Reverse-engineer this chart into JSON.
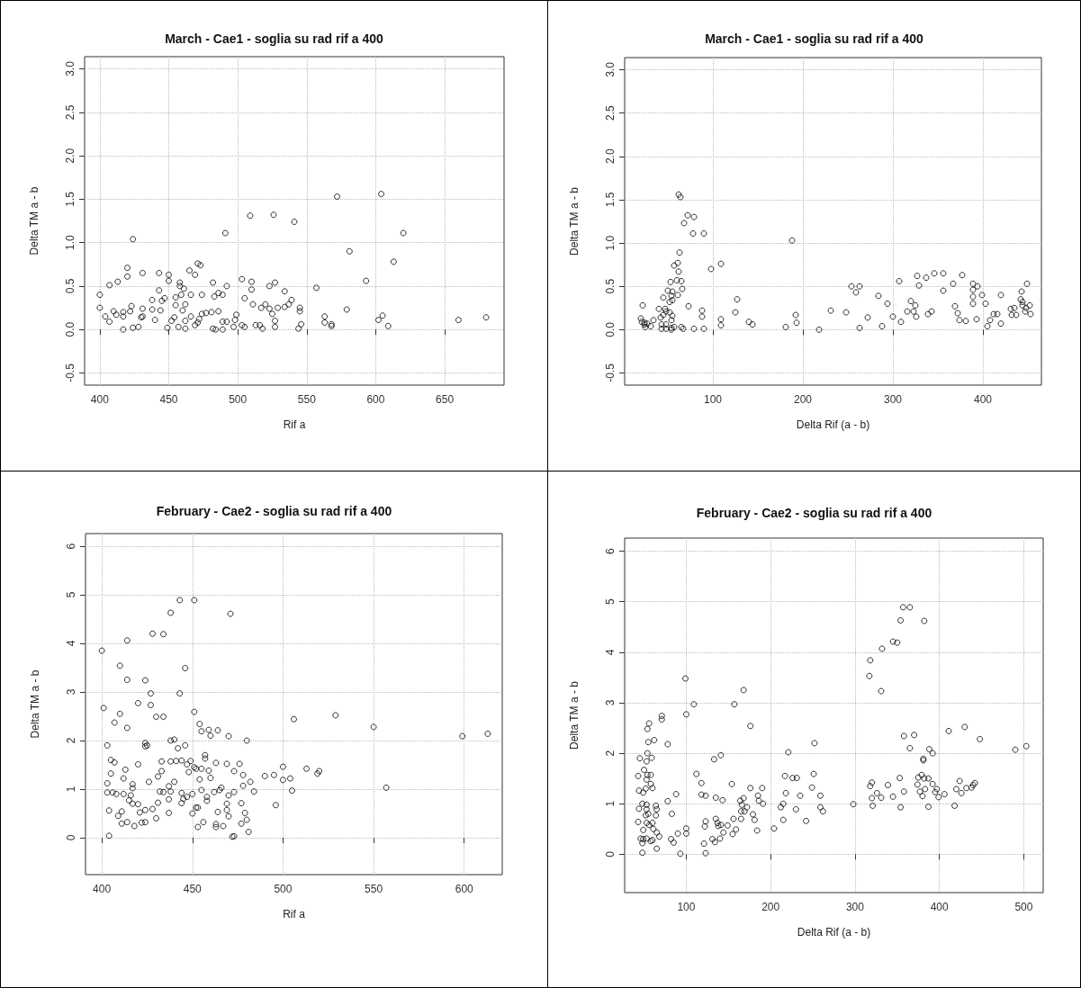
{
  "chart_data": [
    {
      "type": "scatter",
      "title": "March - Cae1 - soglia su rad rif a 400",
      "xlabel": "Rif a",
      "ylabel": "Delta TM a - b",
      "color": "#000000",
      "marker": "circle",
      "grid": true,
      "xlim": [
        389,
        693
      ],
      "xticks": [
        400,
        450,
        500,
        550,
        600,
        650
      ],
      "ylim": [
        -0.64,
        3.14
      ],
      "yticks": [
        -0.5,
        {
          "value": 0,
          "label": "0.0"
        },
        0.5,
        {
          "value": 1,
          "label": "1.0"
        },
        1.5,
        {
          "value": 2,
          "label": "2.0"
        },
        2.5,
        {
          "value": 3,
          "label": "3.0"
        }
      ],
      "x": [
        509,
        526,
        541,
        491,
        424,
        572,
        604,
        620,
        581,
        613,
        593,
        557,
        400,
        407,
        413,
        420,
        420,
        431,
        443,
        450,
        450,
        465,
        469,
        471,
        473,
        443,
        458,
        458,
        461,
        459,
        455,
        466,
        474,
        482,
        483,
        486,
        489,
        492,
        503,
        510,
        510,
        523,
        527,
        534,
        505,
        511,
        517,
        520,
        523,
        525,
        529,
        534,
        537,
        539,
        545,
        545,
        546,
        544,
        527,
        527,
        518,
        516,
        513,
        505,
        503,
        499,
        498,
        497,
        492,
        489,
        489,
        484,
        482,
        486,
        481,
        477,
        474,
        472,
        471,
        469,
        466,
        462,
        462,
        457,
        454,
        452,
        449,
        460,
        455,
        462,
        445,
        447,
        444,
        438,
        438,
        440,
        431,
        431,
        430,
        423,
        422,
        417,
        417,
        412,
        410,
        400,
        404,
        407,
        417,
        424,
        428,
        563,
        563,
        568,
        568,
        579,
        602,
        605,
        609,
        660,
        680
      ],
      "values": [
        1.31,
        1.32,
        1.24,
        1.11,
        1.04,
        1.53,
        1.56,
        1.11,
        0.9,
        0.78,
        0.56,
        0.48,
        0.4,
        0.51,
        0.55,
        0.61,
        0.71,
        0.65,
        0.65,
        0.63,
        0.56,
        0.68,
        0.63,
        0.76,
        0.74,
        0.45,
        0.54,
        0.5,
        0.47,
        0.4,
        0.37,
        0.4,
        0.4,
        0.54,
        0.38,
        0.42,
        0.4,
        0.5,
        0.58,
        0.55,
        0.46,
        0.5,
        0.54,
        0.44,
        0.36,
        0.29,
        0.25,
        0.29,
        0.24,
        0.18,
        0.25,
        0.26,
        0.29,
        0.34,
        0.25,
        0.21,
        0.06,
        0.01,
        0.1,
        0.03,
        0.01,
        0.05,
        0.05,
        0.03,
        0.05,
        0.17,
        0.11,
        0.03,
        0.09,
        0.09,
        0.0,
        0.0,
        0.01,
        0.21,
        0.2,
        0.19,
        0.18,
        0.12,
        0.08,
        0.05,
        0.15,
        0.1,
        0.01,
        0.03,
        0.14,
        0.1,
        0.02,
        0.22,
        0.28,
        0.29,
        0.33,
        0.36,
        0.22,
        0.34,
        0.23,
        0.11,
        0.24,
        0.15,
        0.14,
        0.27,
        0.21,
        0.2,
        0.15,
        0.17,
        0.21,
        0.25,
        0.15,
        0.09,
        0.0,
        0.02,
        0.03,
        0.15,
        0.08,
        0.06,
        0.04,
        0.23,
        0.11,
        0.16,
        0.04,
        0.11,
        0.14
      ]
    },
    {
      "type": "scatter",
      "title": "March - Cae1 - soglia su rad rif a 400",
      "xlabel": "Delta Rif (a - b)",
      "ylabel": "Delta TM a - b",
      "color": "#000000",
      "marker": "circle",
      "grid": true,
      "xlim": [
        2,
        465
      ],
      "xticks": [
        100,
        200,
        300,
        400
      ],
      "ylim": [
        -0.64,
        3.14
      ],
      "yticks": [
        -0.5,
        {
          "value": 0,
          "label": "0.0"
        },
        0.5,
        {
          "value": 1,
          "label": "1.0"
        },
        1.5,
        {
          "value": 2,
          "label": "2.0"
        },
        2.5,
        {
          "value": 3,
          "label": "3.0"
        }
      ],
      "x": [
        62,
        64,
        68,
        72,
        79,
        78,
        90,
        63,
        61,
        62,
        57,
        60,
        65,
        53,
        66,
        61,
        54,
        55,
        50,
        45,
        52,
        55,
        40,
        47,
        48,
        45,
        42,
        52,
        55,
        54,
        48,
        43,
        43,
        48,
        54,
        54,
        57,
        65,
        67,
        79,
        90,
        73,
        88,
        88,
        98,
        109,
        109,
        109,
        125,
        127,
        140,
        144,
        181,
        188,
        192,
        193,
        218,
        231,
        248,
        254,
        263,
        259,
        263,
        272,
        284,
        288,
        294,
        300,
        307,
        309,
        316,
        320,
        323,
        325,
        326,
        327,
        329,
        337,
        339,
        343,
        346,
        356,
        356,
        367,
        369,
        372,
        374,
        377,
        381,
        389,
        389,
        389,
        394,
        389,
        393,
        399,
        403,
        405,
        408,
        412,
        416,
        420,
        420,
        431,
        435,
        432,
        437,
        443,
        442,
        444,
        444,
        448,
        449,
        447,
        452,
        453,
        20,
        22,
        21,
        24,
        25,
        27,
        31,
        24,
        34
      ],
      "values": [
        1.56,
        1.53,
        1.23,
        1.32,
        1.3,
        1.11,
        1.11,
        0.89,
        0.77,
        0.67,
        0.74,
        0.57,
        0.56,
        0.55,
        0.47,
        0.4,
        0.39,
        0.44,
        0.45,
        0.37,
        0.32,
        0.34,
        0.24,
        0.24,
        0.21,
        0.17,
        0.14,
        0.2,
        0.16,
        0.11,
        0.06,
        0.06,
        0.01,
        0.01,
        0.02,
        0.0,
        0.03,
        0.03,
        0.01,
        0.01,
        0.01,
        0.27,
        0.22,
        0.15,
        0.7,
        0.76,
        0.12,
        0.05,
        0.2,
        0.35,
        0.09,
        0.06,
        0.03,
        1.03,
        0.17,
        0.08,
        0.0,
        0.22,
        0.2,
        0.5,
        0.5,
        0.43,
        0.02,
        0.14,
        0.39,
        0.04,
        0.3,
        0.15,
        0.56,
        0.09,
        0.21,
        0.33,
        0.21,
        0.28,
        0.15,
        0.62,
        0.51,
        0.6,
        0.18,
        0.21,
        0.65,
        0.65,
        0.45,
        0.53,
        0.27,
        0.19,
        0.11,
        0.63,
        0.1,
        0.38,
        0.53,
        0.46,
        0.5,
        0.3,
        0.12,
        0.4,
        0.3,
        0.04,
        0.11,
        0.18,
        0.18,
        0.4,
        0.07,
        0.24,
        0.25,
        0.17,
        0.17,
        0.44,
        0.35,
        0.32,
        0.28,
        0.25,
        0.53,
        0.21,
        0.28,
        0.18,
        0.13,
        0.28,
        0.09,
        0.08,
        0.03,
        0.07,
        0.04,
        0.06,
        0.11
      ]
    },
    {
      "type": "scatter",
      "title": "February - Cae2 - soglia su rad rif a 400",
      "xlabel": "Rif a",
      "ylabel": "Delta TM a - b",
      "color": "#000000",
      "marker": "circle",
      "grid": true,
      "xlim": [
        391,
        621
      ],
      "xticks": [
        400,
        450,
        500,
        550,
        600
      ],
      "ylim": [
        -0.76,
        6.26
      ],
      "yticks": [
        0,
        1,
        2,
        3,
        4,
        5,
        6
      ],
      "x": [
        443,
        451,
        438,
        471,
        428,
        434,
        414,
        400,
        410,
        414,
        424,
        446,
        427,
        443,
        401,
        420,
        427,
        410,
        430,
        434,
        407,
        414,
        451,
        454,
        455,
        459,
        460,
        464,
        470,
        480,
        506,
        529,
        550,
        599,
        613,
        403,
        424,
        425,
        424,
        438,
        440,
        442,
        446,
        405,
        407,
        405,
        413,
        420,
        433,
        438,
        441,
        444,
        447,
        449,
        451,
        448,
        452,
        455,
        459,
        457,
        457,
        463,
        469,
        476,
        473,
        478,
        490,
        495,
        500,
        513,
        520,
        519,
        500,
        504,
        505,
        496,
        557,
        403,
        403,
        406,
        408,
        412,
        412,
        417,
        417,
        416,
        415,
        417,
        420,
        421,
        411,
        404,
        409,
        411,
        414,
        418,
        422,
        424,
        424,
        428,
        430,
        431,
        432,
        434,
        426,
        431,
        433,
        437,
        438,
        437,
        440,
        437,
        444,
        445,
        447,
        444,
        450,
        450,
        452,
        453,
        453,
        456,
        455,
        454,
        458,
        458,
        460,
        462,
        463,
        464,
        463,
        465,
        466,
        467,
        469,
        470,
        470,
        469,
        473,
        473,
        472,
        477,
        477,
        479,
        480,
        481,
        478,
        482,
        484,
        404
      ],
      "values": [
        4.89,
        4.89,
        4.63,
        4.61,
        4.2,
        4.19,
        4.06,
        3.85,
        3.54,
        3.25,
        3.24,
        3.49,
        2.97,
        2.97,
        2.67,
        2.77,
        2.73,
        2.55,
        2.49,
        2.49,
        2.37,
        2.26,
        2.59,
        2.34,
        2.19,
        2.22,
        2.1,
        2.21,
        2.09,
        2.0,
        2.44,
        2.52,
        2.28,
        2.09,
        2.14,
        1.9,
        1.95,
        1.9,
        1.88,
        2.0,
        2.02,
        1.84,
        1.9,
        1.6,
        1.55,
        1.32,
        1.4,
        1.51,
        1.57,
        1.57,
        1.58,
        1.59,
        1.51,
        1.58,
        1.45,
        1.35,
        1.42,
        1.42,
        1.38,
        1.7,
        1.63,
        1.54,
        1.52,
        1.52,
        1.37,
        1.29,
        1.27,
        1.29,
        1.46,
        1.42,
        1.37,
        1.32,
        1.19,
        1.22,
        0.97,
        0.67,
        1.03,
        1.12,
        0.93,
        0.93,
        0.9,
        0.9,
        1.22,
        1.1,
        1.02,
        0.87,
        0.77,
        0.7,
        0.69,
        0.52,
        0.54,
        0.56,
        0.45,
        0.29,
        0.32,
        0.24,
        0.31,
        0.32,
        0.57,
        0.59,
        0.4,
        0.72,
        0.95,
        0.94,
        1.15,
        1.26,
        1.37,
        0.79,
        0.95,
        0.51,
        1.15,
        1.06,
        0.92,
        0.8,
        0.84,
        0.71,
        0.9,
        0.5,
        0.62,
        0.62,
        0.22,
        0.32,
        0.98,
        1.2,
        0.84,
        0.76,
        1.23,
        0.94,
        0.28,
        0.53,
        0.22,
        0.98,
        1.03,
        0.24,
        0.7,
        0.87,
        0.44,
        0.57,
        0.94,
        0.03,
        0.02,
        0.71,
        0.29,
        0.51,
        0.37,
        0.12,
        1.07,
        1.15,
        0.95,
        0.04
      ]
    },
    {
      "type": "scatter",
      "title": "February - Cae2 - soglia su rad rif a 400",
      "xlabel": "Delta Rif (a - b)",
      "ylabel": "Delta TM a - b",
      "color": "#000000",
      "marker": "circle",
      "grid": true,
      "xlim": [
        27,
        523
      ],
      "xticks": [
        100,
        200,
        300,
        400,
        500
      ],
      "ylim": [
        -0.76,
        6.26
      ],
      "yticks": [
        0,
        1,
        2,
        3,
        4,
        5,
        6
      ],
      "x": [
        357,
        365,
        354,
        382,
        345,
        350,
        332,
        318,
        317,
        331,
        99,
        168,
        109,
        157,
        100,
        176,
        71,
        71,
        56,
        54,
        62,
        55,
        78,
        54,
        45,
        59,
        53,
        252,
        221,
        358,
        370,
        365,
        411,
        430,
        448,
        490,
        503,
        388,
        392,
        381,
        381,
        133,
        141,
        112,
        118,
        118,
        123,
        135,
        143,
        154,
        217,
        226,
        231,
        251,
        249,
        218,
        235,
        259,
        215,
        212,
        230,
        259,
        262,
        242,
        215,
        204,
        176,
        190,
        185,
        186,
        191,
        164,
        168,
        166,
        172,
        169,
        165,
        179,
        181,
        165,
        184,
        156,
        159,
        149,
        155,
        144,
        140,
        135,
        137,
        138,
        141,
        123,
        122,
        131,
        134,
        121,
        123,
        93,
        100,
        100,
        90,
        83,
        82,
        85,
        78,
        88,
        318,
        320,
        339,
        353,
        358,
        374,
        375,
        379,
        382,
        387,
        377,
        383,
        380,
        392,
        397,
        395,
        399,
        406,
        420,
        424,
        426,
        432,
        438,
        440,
        442,
        418,
        387,
        354,
        345,
        331,
        326,
        320,
        321,
        298,
        43,
        44,
        49,
        50,
        54,
        58,
        53,
        58,
        60,
        52,
        48,
        53,
        44,
        53,
        52,
        55,
        64,
        65,
        64,
        43,
        53,
        60,
        56,
        61,
        49,
        65,
        68,
        46,
        49,
        53,
        58,
        60,
        48,
        65,
        48
      ],
      "values": [
        4.89,
        4.89,
        4.63,
        4.62,
        4.21,
        4.19,
        4.07,
        3.84,
        3.53,
        3.23,
        3.48,
        3.25,
        2.97,
        2.97,
        2.77,
        2.54,
        2.74,
        2.67,
        2.59,
        2.48,
        2.26,
        2.22,
        2.18,
        2.0,
        1.9,
        1.91,
        1.84,
        2.2,
        2.02,
        2.34,
        2.36,
        2.1,
        2.44,
        2.52,
        2.28,
        2.07,
        2.14,
        2.08,
        2.0,
        1.89,
        1.86,
        1.88,
        1.96,
        1.59,
        1.41,
        1.18,
        1.16,
        1.12,
        1.07,
        1.39,
        1.55,
        1.51,
        1.51,
        1.59,
        1.32,
        1.21,
        1.16,
        1.16,
        1.0,
        0.93,
        0.89,
        0.93,
        0.85,
        0.66,
        0.68,
        0.51,
        1.31,
        1.31,
        1.16,
        1.06,
        1.0,
        1.06,
        1.11,
        0.98,
        0.93,
        0.85,
        0.85,
        0.79,
        0.68,
        0.7,
        0.47,
        0.7,
        0.49,
        0.57,
        0.4,
        0.43,
        0.31,
        0.7,
        0.62,
        0.56,
        0.58,
        0.65,
        0.55,
        0.3,
        0.24,
        0.21,
        0.02,
        0.01,
        0.41,
        0.51,
        0.41,
        0.8,
        0.3,
        0.23,
        1.05,
        1.19,
        1.35,
        1.42,
        1.37,
        1.51,
        1.24,
        1.38,
        1.52,
        1.57,
        1.5,
        1.5,
        1.24,
        1.29,
        1.15,
        1.39,
        1.29,
        1.23,
        1.13,
        1.19,
        1.29,
        1.45,
        1.21,
        1.31,
        1.32,
        1.37,
        1.41,
        0.96,
        0.94,
        0.93,
        1.14,
        1.12,
        1.21,
        1.11,
        0.96,
        0.99,
        1.55,
        1.26,
        1.22,
        1.67,
        1.57,
        1.57,
        1.48,
        1.39,
        1.31,
        1.3,
        1.0,
        0.98,
        0.9,
        0.89,
        0.77,
        0.8,
        0.96,
        0.89,
        0.77,
        0.64,
        0.62,
        0.62,
        0.58,
        0.5,
        0.48,
        0.43,
        0.35,
        0.31,
        0.3,
        0.31,
        0.26,
        0.28,
        0.22,
        0.11,
        0.03
      ]
    }
  ]
}
